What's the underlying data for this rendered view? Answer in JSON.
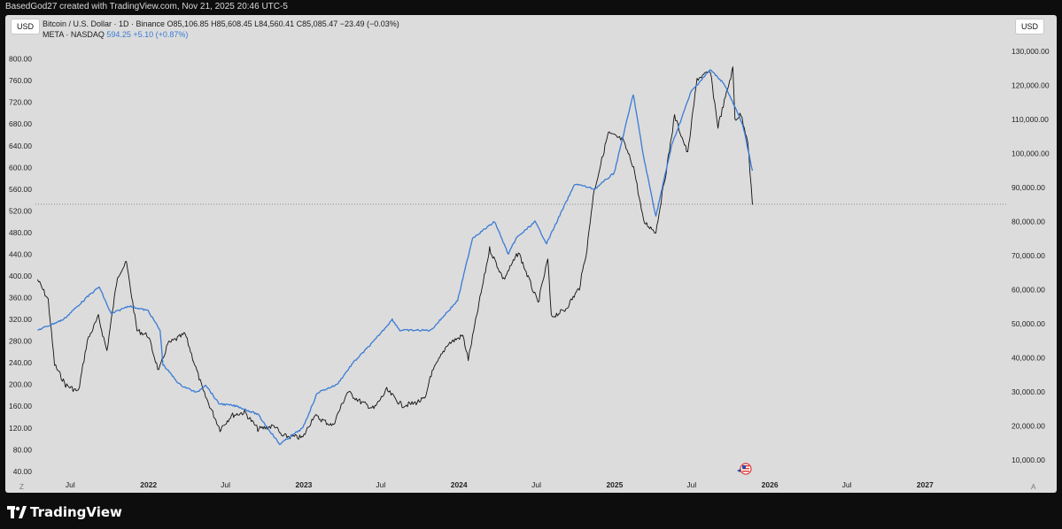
{
  "header": {
    "attribution": "BasedGod27 created with TradingView.com, Nov 21, 2025 20:46 UTC-5"
  },
  "chart": {
    "currency_left": "USD",
    "currency_right": "USD",
    "btc_legend": "Bitcoin / U.S. Dollar · 1D · Binance  O85,106.85  H85,608.45  L84,560.41  C85,085.47  −23.49 (−0.03%)",
    "meta_legend_name": "META · NASDAQ",
    "meta_legend_values": "594.25  +5.10 (+0.87%)",
    "corner_left": "Z",
    "corner_right": "A"
  },
  "footer": {
    "brand": "TradingView"
  },
  "chart_data": {
    "type": "line",
    "left_axis_ticks": [
      "40.00",
      "80.00",
      "120.00",
      "160.00",
      "200.00",
      "240.00",
      "280.00",
      "320.00",
      "360.00",
      "400.00",
      "440.00",
      "480.00",
      "520.00",
      "560.00",
      "600.00",
      "640.00",
      "680.00",
      "720.00",
      "760.00",
      "800.00"
    ],
    "right_axis_ticks": [
      "10,000.00",
      "20,000.00",
      "30,000.00",
      "40,000.00",
      "50,000.00",
      "60,000.00",
      "70,000.00",
      "80,000.00",
      "90,000.00",
      "100,000.00",
      "110,000.00",
      "120,000.00",
      "130,000.00"
    ],
    "x_tick_labels": [
      {
        "label": "Jul",
        "date": "2021-07-01"
      },
      {
        "label": "2022",
        "date": "2022-01-01"
      },
      {
        "label": "Jul",
        "date": "2022-07-01"
      },
      {
        "label": "2023",
        "date": "2023-01-01"
      },
      {
        "label": "Jul",
        "date": "2023-07-01"
      },
      {
        "label": "2024",
        "date": "2024-01-01"
      },
      {
        "label": "Jul",
        "date": "2024-07-01"
      },
      {
        "label": "2025",
        "date": "2025-01-01"
      },
      {
        "label": "Jul",
        "date": "2025-07-01"
      },
      {
        "label": "2026",
        "date": "2026-01-01"
      },
      {
        "label": "Jul",
        "date": "2026-07-01"
      },
      {
        "label": "2027",
        "date": "2027-01-01"
      }
    ],
    "x_range": [
      "2021-04-10",
      "2027-07-15"
    ],
    "left_ylim": [
      30,
      845
    ],
    "right_ylim": [
      5000,
      135000
    ],
    "reference_line": {
      "axis": "right",
      "value": 85085.47
    },
    "series": [
      {
        "name": "Bitcoin / U.S. Dollar",
        "axis": "right",
        "color": "#111111",
        "x": [
          "2021-04-15",
          "2021-05-10",
          "2021-05-25",
          "2021-06-20",
          "2021-07-20",
          "2021-08-10",
          "2021-09-05",
          "2021-09-25",
          "2021-10-20",
          "2021-11-10",
          "2021-12-05",
          "2021-12-31",
          "2022-01-25",
          "2022-02-15",
          "2022-03-28",
          "2022-05-10",
          "2022-06-18",
          "2022-07-15",
          "2022-08-15",
          "2022-09-15",
          "2022-10-25",
          "2022-11-10",
          "2022-12-30",
          "2023-01-25",
          "2023-03-10",
          "2023-04-14",
          "2023-05-15",
          "2023-06-15",
          "2023-07-15",
          "2023-08-20",
          "2023-09-15",
          "2023-10-15",
          "2023-10-25",
          "2023-12-05",
          "2024-01-10",
          "2024-01-23",
          "2024-03-13",
          "2024-04-15",
          "2024-05-20",
          "2024-07-05",
          "2024-07-28",
          "2024-08-05",
          "2024-09-06",
          "2024-10-10",
          "2024-10-28",
          "2024-11-12",
          "2024-12-17",
          "2025-01-20",
          "2025-02-15",
          "2025-03-10",
          "2025-04-08",
          "2025-05-05",
          "2025-05-22",
          "2025-06-22",
          "2025-07-14",
          "2025-08-14",
          "2025-09-01",
          "2025-10-06",
          "2025-10-11",
          "2025-10-25",
          "2025-11-10",
          "2025-11-21"
        ],
        "y": [
          63000,
          57000,
          38000,
          32000,
          30000,
          45000,
          52000,
          42000,
          64000,
          68000,
          48000,
          46500,
          36000,
          44000,
          47000,
          30000,
          19000,
          23000,
          24000,
          19000,
          20000,
          17000,
          16500,
          23000,
          20000,
          30000,
          27000,
          25000,
          30500,
          26000,
          26500,
          28000,
          34500,
          44000,
          46500,
          39500,
          72000,
          63000,
          71000,
          56000,
          69000,
          52000,
          54000,
          60500,
          72000,
          88000,
          106000,
          104000,
          96000,
          80000,
          77000,
          97000,
          111000,
          100000,
          122000,
          124000,
          108000,
          125000,
          110000,
          111500,
          104000,
          85000
        ]
      },
      {
        "name": "META · NASDAQ",
        "axis": "left",
        "color": "#3a7bd5",
        "x": [
          "2021-04-15",
          "2021-06-15",
          "2021-08-15",
          "2021-09-07",
          "2021-10-05",
          "2021-11-15",
          "2021-12-31",
          "2022-01-28",
          "2022-02-04",
          "2022-03-15",
          "2022-04-25",
          "2022-05-15",
          "2022-06-15",
          "2022-07-28",
          "2022-09-15",
          "2022-10-27",
          "2022-11-05",
          "2022-12-30",
          "2023-02-02",
          "2023-03-20",
          "2023-04-27",
          "2023-06-15",
          "2023-07-28",
          "2023-08-15",
          "2023-09-15",
          "2023-10-27",
          "2023-12-29",
          "2024-02-02",
          "2024-03-25",
          "2024-04-26",
          "2024-05-15",
          "2024-06-28",
          "2024-07-25",
          "2024-08-30",
          "2024-09-30",
          "2024-11-15",
          "2024-12-31",
          "2025-02-14",
          "2025-03-10",
          "2025-04-08",
          "2025-05-15",
          "2025-06-30",
          "2025-08-14",
          "2025-09-15",
          "2025-10-29",
          "2025-11-21"
        ],
        "y": [
          300,
          320,
          365,
          380,
          330,
          345,
          336,
          300,
          237,
          200,
          185,
          200,
          165,
          160,
          145,
          100,
          90,
          120,
          185,
          200,
          240,
          280,
          320,
          300,
          300,
          300,
          355,
          470,
          500,
          440,
          470,
          500,
          460,
          520,
          570,
          560,
          590,
          735,
          620,
          510,
          640,
          740,
          780,
          755,
          680,
          594
        ]
      }
    ]
  }
}
